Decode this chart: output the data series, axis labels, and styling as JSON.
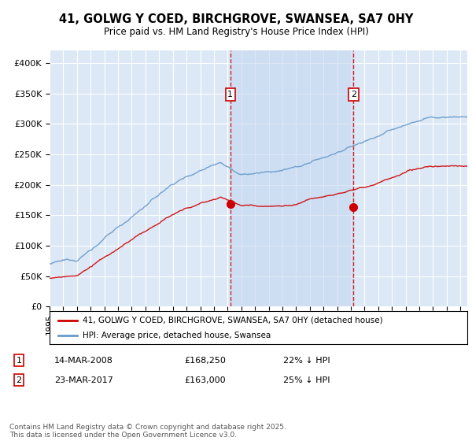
{
  "title": "41, GOLWG Y COED, BIRCHGROVE, SWANSEA, SA7 0HY",
  "subtitle": "Price paid vs. HM Land Registry's House Price Index (HPI)",
  "ylim": [
    0,
    420000
  ],
  "yticks": [
    0,
    50000,
    100000,
    150000,
    200000,
    250000,
    300000,
    350000,
    400000
  ],
  "ytick_labels": [
    "£0",
    "£50K",
    "£100K",
    "£150K",
    "£200K",
    "£250K",
    "£300K",
    "£350K",
    "£400K"
  ],
  "background_color": "#ffffff",
  "plot_bg_color": "#dce8f5",
  "grid_color": "#ffffff",
  "line1_color": "#cc0000",
  "line2_color": "#6699cc",
  "shade_color": "#c5d8f0",
  "legend_label1": "41, GOLWG Y COED, BIRCHGROVE, SWANSEA, SA7 0HY (detached house)",
  "legend_label2": "HPI: Average price, detached house, Swansea",
  "sale1_label": "1",
  "sale1_date": "14-MAR-2008",
  "sale1_price": "£168,250",
  "sale1_hpi": "22% ↓ HPI",
  "sale2_label": "2",
  "sale2_date": "23-MAR-2017",
  "sale2_price": "£163,000",
  "sale2_hpi": "25% ↓ HPI",
  "footer": "Contains HM Land Registry data © Crown copyright and database right 2025.\nThis data is licensed under the Open Government Licence v3.0.",
  "sale1_x": 2008.2,
  "sale1_y": 168250,
  "sale2_x": 2017.2,
  "sale2_y": 163000,
  "vline1_x": 2008.2,
  "vline2_x": 2017.2,
  "xmin": 1995,
  "xmax": 2025.5
}
